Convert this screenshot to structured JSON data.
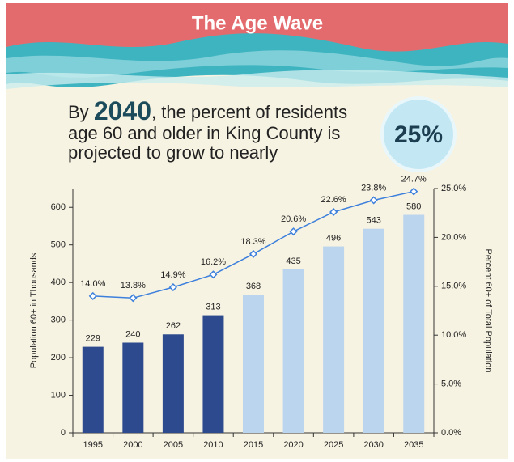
{
  "header": {
    "title": "The Age Wave"
  },
  "headline": {
    "prefix": "By",
    "year": "2040",
    "line1": ", the percent of residents",
    "line2": "age 60 and older in King County is",
    "line3": "projected to grow to nearly",
    "callout": "25%"
  },
  "chart_data": {
    "type": "bar",
    "categories": [
      "1995",
      "2000",
      "2005",
      "2010",
      "2015",
      "2020",
      "2025",
      "2030",
      "2035"
    ],
    "series": [
      {
        "type": "bar",
        "values": [
          229,
          240,
          262,
          313,
          368,
          435,
          496,
          543,
          580
        ],
        "colors": [
          "#2d4a8e",
          "#2d4a8e",
          "#2d4a8e",
          "#2d4a8e",
          "#bcd5ee",
          "#bcd5ee",
          "#bcd5ee",
          "#bcd5ee",
          "#bcd5ee"
        ]
      },
      {
        "type": "line",
        "axis": "y2",
        "color": "#3c7fdc",
        "values": [
          14.0,
          13.8,
          14.9,
          16.2,
          18.3,
          20.6,
          22.6,
          23.8,
          24.7
        ],
        "value_labels": [
          "14.0%",
          "13.8%",
          "14.9%",
          "16.2%",
          "18.3%",
          "20.6%",
          "22.6%",
          "23.8%",
          "24.7%"
        ]
      }
    ],
    "ylabel": "Population 60+ in Thousands",
    "y2label": "Percent 60+ of Total Population",
    "ylim": [
      0,
      650
    ],
    "yticks": [
      0,
      100,
      200,
      300,
      400,
      500,
      600
    ],
    "y2lim": [
      0,
      25
    ],
    "y2ticks": [
      {
        "value": 0,
        "label": "0.0%"
      },
      {
        "value": 5,
        "label": "5.0%"
      },
      {
        "value": 10,
        "label": "10.0%"
      },
      {
        "value": 15,
        "label": "15.0%"
      },
      {
        "value": 20,
        "label": "20.0%"
      },
      {
        "value": 25,
        "label": "25.0%"
      }
    ]
  }
}
